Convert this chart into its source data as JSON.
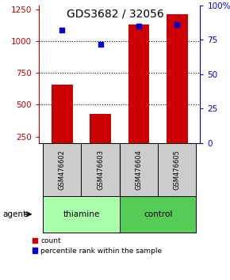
{
  "title": "GDS3682 / 32056",
  "samples": [
    "GSM476602",
    "GSM476603",
    "GSM476604",
    "GSM476605"
  ],
  "bar_values": [
    660,
    430,
    1130,
    1210
  ],
  "bar_color": "#cc0000",
  "pct_values": [
    82,
    72,
    85,
    86
  ],
  "percentile_color": "#0000cc",
  "ylim_left": [
    200,
    1280
  ],
  "ylim_right": [
    0,
    100
  ],
  "yticks_left": [
    250,
    500,
    750,
    1000,
    1250
  ],
  "yticks_right": [
    0,
    25,
    50,
    75,
    100
  ],
  "ytick_labels_right": [
    "0",
    "25",
    "50",
    "75",
    "100%"
  ],
  "groups": [
    {
      "label": "thiamine",
      "indices": [
        0,
        1
      ],
      "color": "#aaffaa"
    },
    {
      "label": "control",
      "indices": [
        2,
        3
      ],
      "color": "#55cc55"
    }
  ],
  "agent_label": "agent",
  "legend_count_label": "count",
  "legend_pct_label": "percentile rank within the sample",
  "bar_width": 0.55,
  "background_color": "#ffffff",
  "plot_bg": "#ffffff",
  "gray_label_bg": "#cccccc",
  "left_axis_color": "#cc0000",
  "right_axis_color": "#0000cc"
}
